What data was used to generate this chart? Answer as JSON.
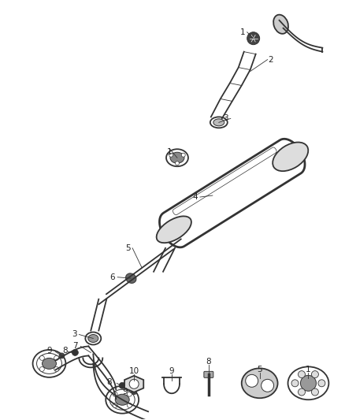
{
  "bg_color": "#ffffff",
  "line_color": "#333333",
  "fig_width": 4.38,
  "fig_height": 5.33,
  "dpi": 100,
  "label_fs": 7.0,
  "lw_pipe": 1.3,
  "lw_thick": 2.0,
  "lw_thin": 0.7
}
